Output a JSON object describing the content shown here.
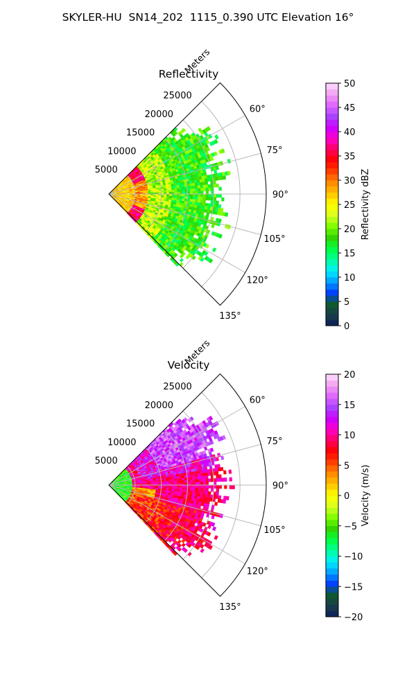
{
  "figure": {
    "title": "SKYLER-HU  SN14_202  1115_0.390 UTC Elevation 16°"
  },
  "chart_data": [
    {
      "type": "heatmap",
      "subtype": "polar-sector (PPI)",
      "title": "Reflectivity",
      "radial_axis_label": "Meters",
      "radial_range": [
        0,
        30000
      ],
      "radial_ticks": [
        "5000",
        "10000",
        "15000",
        "20000",
        "25000"
      ],
      "angle_ticks": [
        "60°",
        "75°",
        "90°",
        "105°",
        "120°",
        "135°"
      ],
      "angle_range_deg": [
        45,
        135
      ],
      "grid": true,
      "colorbar": {
        "label": "Reflectivity dBZ",
        "min": 0,
        "max": 50,
        "ticks": [
          "0",
          "5",
          "10",
          "15",
          "20",
          "25",
          "30",
          "35",
          "40",
          "45",
          "50"
        ],
        "colormap": [
          "#0a1e5a",
          "#1b3d4a",
          "#0f5a2e",
          "#0040ff",
          "#00a0ff",
          "#00f0ff",
          "#00ff9a",
          "#00ff40",
          "#33d400",
          "#7cff00",
          "#d8ff20",
          "#ffff00",
          "#ffc400",
          "#ff8a00",
          "#ff4000",
          "#ff0000",
          "#ff0060",
          "#ff00cc",
          "#cc00ff",
          "#aa44ff",
          "#e066ff",
          "#f0a0f0",
          "#ffe0ff"
        ]
      },
      "data_extent_m": 23000,
      "dominant_values_dBZ": {
        "near_range": "25-30",
        "bright_ring": "35-40",
        "far_range": "15-20"
      }
    },
    {
      "type": "heatmap",
      "subtype": "polar-sector (PPI)",
      "title": "Velocity",
      "radial_axis_label": "Meters",
      "radial_range": [
        0,
        30000
      ],
      "radial_ticks": [
        "5000",
        "10000",
        "15000",
        "20000",
        "25000"
      ],
      "angle_ticks": [
        "60°",
        "75°",
        "90°",
        "105°",
        "120°",
        "135°"
      ],
      "angle_range_deg": [
        45,
        135
      ],
      "grid": true,
      "colorbar": {
        "label": "Velocity (m/s)",
        "min": -20,
        "max": 20,
        "ticks": [
          "−20",
          "−15",
          "−10",
          "−5",
          "0",
          "5",
          "10",
          "15",
          "20"
        ],
        "colormap": [
          "#0a1e5a",
          "#1b3d4a",
          "#0f5a2e",
          "#0040ff",
          "#00a0ff",
          "#00f0ff",
          "#00ff9a",
          "#00ff40",
          "#33d400",
          "#7cff00",
          "#d8ff20",
          "#ffff00",
          "#ffc400",
          "#ff8a00",
          "#ff4000",
          "#ff0000",
          "#ff0060",
          "#ff00cc",
          "#cc00ff",
          "#aa44ff",
          "#e066ff",
          "#f0a0f0",
          "#ffe0ff"
        ]
      },
      "data_extent_m": 23000,
      "dominant_values_ms": {
        "near_range": "-5 to -10",
        "left_flank": "0 to 5",
        "center": "8 to 12",
        "upper_right": "15 to 18"
      }
    }
  ]
}
